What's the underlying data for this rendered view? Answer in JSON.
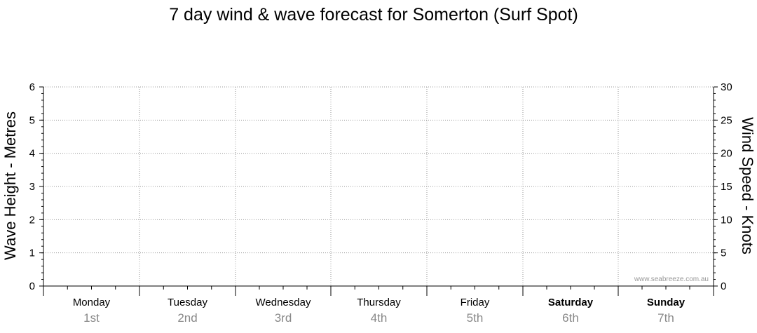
{
  "chart_data": {
    "type": "line",
    "title": "7 day wind & wave forecast for Somerton  (Surf Spot)",
    "left_axis": {
      "label": "Wave Height - Metres",
      "range": [
        0,
        6
      ],
      "ticks": [
        "0",
        "1",
        "2",
        "3",
        "4",
        "5",
        "6"
      ]
    },
    "right_axis": {
      "label": "Wind Speed - Knots",
      "range": [
        0,
        30
      ],
      "ticks": [
        "0",
        "5",
        "10",
        "15",
        "20",
        "25",
        "30"
      ]
    },
    "days": [
      {
        "name": "Monday",
        "date": "1st",
        "bold": false
      },
      {
        "name": "Tuesday",
        "date": "2nd",
        "bold": false
      },
      {
        "name": "Wednesday",
        "date": "3rd",
        "bold": false
      },
      {
        "name": "Thursday",
        "date": "4th",
        "bold": false
      },
      {
        "name": "Friday",
        "date": "5th",
        "bold": false
      },
      {
        "name": "Saturday",
        "date": "6th",
        "bold": true
      },
      {
        "name": "Sunday",
        "date": "7th",
        "bold": true
      }
    ],
    "series": [],
    "grid": true
  },
  "credit": "www.seabreeze.com.au"
}
